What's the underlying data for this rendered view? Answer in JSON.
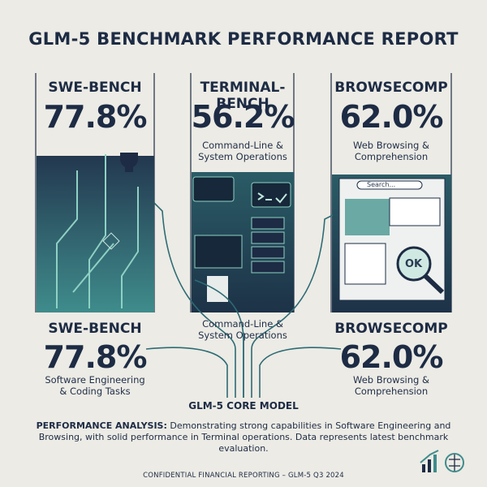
{
  "header": {
    "title": "GLM-5 BENCHMARK PERFORMANCE REPORT"
  },
  "top_panels": [
    {
      "name": "SWE-BENCH",
      "score": "77.8%"
    },
    {
      "name": "TERMINAL-BENCH",
      "score": "56.2%",
      "description": "Command-Line & System Operations"
    },
    {
      "name": "BROWSECOMP",
      "score": "62.0%",
      "description": "Web Browsing & Comprehension"
    }
  ],
  "browser": {
    "search": "Search...",
    "button": "OK"
  },
  "bottom_panels": [
    {
      "name": "SWE-BENCH",
      "score": "77.8%",
      "description": "Software Engineering & Coding Tasks"
    },
    {
      "description": "Command-Line & System Operations"
    },
    {
      "name": "BROWSECOMP",
      "score": "62.0%",
      "description": "Web Browsing & Comprehension"
    }
  ],
  "core": "GLM-5 CORE MODEL",
  "analysis": {
    "label": "PERFORMANCE ANALYSIS:",
    "text": "Demonstrating strong capabilities in Software Engineering and Browsing, with solid performance in Terminal operations. Data represents latest benchmark evaluation."
  },
  "footer": "CONFIDENTIAL FINANCIAL REPORTING – GLM-5 Q3 2024"
}
